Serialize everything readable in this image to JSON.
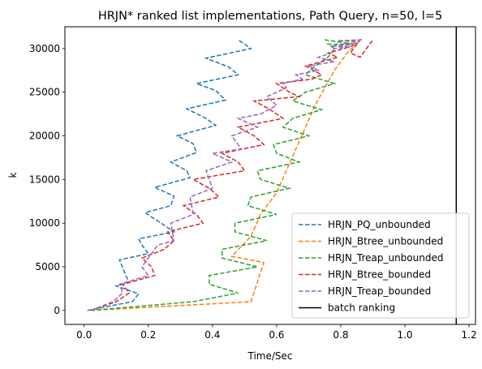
{
  "chart_data": {
    "type": "line",
    "title": "HRJN* ranked list implementations, Path Query, n=50, l=5",
    "xlabel": "Time/Sec",
    "ylabel": "k",
    "xlim": [
      -0.06,
      1.22
    ],
    "ylim": [
      -1600,
      32500
    ],
    "xticks": [
      0.0,
      0.2,
      0.4,
      0.6,
      0.8,
      1.0,
      1.2
    ],
    "xtick_labels": [
      "0.0",
      "0.2",
      "0.4",
      "0.6",
      "0.8",
      "1.0",
      "1.2"
    ],
    "yticks": [
      0,
      5000,
      10000,
      15000,
      20000,
      25000,
      30000
    ],
    "ytick_labels": [
      "0",
      "5000",
      "10000",
      "15000",
      "20000",
      "25000",
      "30000"
    ],
    "legend_position": "lower-right",
    "series": [
      {
        "name": "HRJN_PQ_unbounded",
        "color": "#1f77b4",
        "style": "dashed",
        "x": [
          0.01,
          0.15,
          0.17,
          0.1,
          0.14,
          0.13,
          0.11,
          0.2,
          0.18,
          0.17,
          0.28,
          0.24,
          0.19,
          0.27,
          0.28,
          0.22,
          0.33,
          0.32,
          0.27,
          0.35,
          0.34,
          0.29,
          0.41,
          0.38,
          0.32,
          0.44,
          0.41,
          0.35,
          0.48,
          0.45,
          0.38,
          0.52,
          0.48
        ],
        "y": [
          0,
          1000,
          1900,
          2800,
          3200,
          4000,
          5800,
          6500,
          7500,
          8200,
          9000,
          10000,
          11200,
          12000,
          13100,
          14100,
          15200,
          16000,
          17000,
          18100,
          19100,
          20000,
          21200,
          22000,
          23100,
          24100,
          25200,
          26000,
          27000,
          27900,
          28900,
          30000,
          31000
        ]
      },
      {
        "name": "HRJN_Btree_unbounded",
        "color": "#ff7f0e",
        "style": "dashed",
        "x": [
          0.02,
          0.52,
          0.56,
          0.46,
          0.52,
          0.55,
          0.6,
          0.63,
          0.66,
          0.69,
          0.72,
          0.75,
          0.78,
          0.82,
          0.86,
          0.81
        ],
        "y": [
          0,
          1000,
          5500,
          6200,
          8500,
          11000,
          13500,
          16000,
          18500,
          21000,
          23500,
          25500,
          27500,
          29500,
          31000,
          30500
        ]
      },
      {
        "name": "HRJN_Treap_unbounded",
        "color": "#2ca02c",
        "style": "dashed",
        "x": [
          0.02,
          0.34,
          0.48,
          0.39,
          0.39,
          0.54,
          0.43,
          0.43,
          0.57,
          0.47,
          0.47,
          0.6,
          0.51,
          0.52,
          0.64,
          0.55,
          0.54,
          0.67,
          0.6,
          0.59,
          0.7,
          0.62,
          0.65,
          0.74,
          0.65,
          0.69,
          0.78,
          0.69,
          0.72,
          0.76,
          0.78,
          0.76,
          0.84,
          0.75
        ],
        "y": [
          0,
          1000,
          2000,
          3000,
          4000,
          5000,
          6000,
          7000,
          8000,
          9000,
          10000,
          11000,
          12000,
          13000,
          14000,
          15000,
          16000,
          17000,
          18000,
          19000,
          20000,
          21000,
          22000,
          23000,
          24000,
          25000,
          26000,
          27000,
          28000,
          29000,
          30000,
          30500,
          30500,
          31000
        ]
      },
      {
        "name": "HRJN_Btree_bounded",
        "color": "#d62728",
        "style": "dashed",
        "x": [
          0.02,
          0.1,
          0.14,
          0.12,
          0.22,
          0.21,
          0.18,
          0.25,
          0.28,
          0.26,
          0.37,
          0.35,
          0.31,
          0.42,
          0.39,
          0.34,
          0.5,
          0.48,
          0.43,
          0.56,
          0.53,
          0.48,
          0.62,
          0.58,
          0.53,
          0.67,
          0.64,
          0.6,
          0.71,
          0.74,
          0.69,
          0.74,
          0.79,
          0.76,
          0.81,
          0.85,
          0.83,
          0.86,
          0.9
        ],
        "y": [
          0,
          1000,
          2000,
          3000,
          4000,
          5000,
          6000,
          7000,
          8000,
          9000,
          10000,
          11000,
          12000,
          13000,
          14000,
          15000,
          16000,
          17000,
          18000,
          19000,
          20000,
          21000,
          22000,
          23000,
          24000,
          24500,
          25000,
          26000,
          26500,
          27000,
          28000,
          28500,
          29000,
          29500,
          30000,
          30500,
          29500,
          29000,
          31000
        ]
      },
      {
        "name": "HRJN_Treap_bounded",
        "color": "#9467bd",
        "style": "dashed",
        "x": [
          0.02,
          0.09,
          0.12,
          0.11,
          0.2,
          0.18,
          0.23,
          0.28,
          0.27,
          0.34,
          0.33,
          0.4,
          0.38,
          0.46,
          0.4,
          0.49,
          0.46,
          0.54,
          0.48,
          0.55,
          0.6,
          0.57,
          0.63,
          0.62,
          0.68,
          0.66,
          0.73,
          0.7,
          0.78,
          0.73,
          0.77,
          0.78,
          0.83,
          0.77,
          0.82,
          0.86,
          0.79,
          0.87
        ],
        "y": [
          0,
          1000,
          2000,
          3000,
          4000,
          5000,
          7500,
          8000,
          10000,
          11000,
          13000,
          14000,
          16000,
          17000,
          18000,
          18500,
          20000,
          21000,
          22000,
          22500,
          23500,
          24500,
          25500,
          26000,
          26500,
          27000,
          27500,
          28000,
          28500,
          29000,
          29500,
          30000,
          30200,
          30300,
          30400,
          30800,
          30900,
          31000
        ]
      },
      {
        "name": "batch ranking",
        "color": "#000000",
        "style": "solid",
        "x": [
          1.16,
          1.16
        ],
        "y": [
          -1600,
          32500
        ]
      }
    ]
  }
}
